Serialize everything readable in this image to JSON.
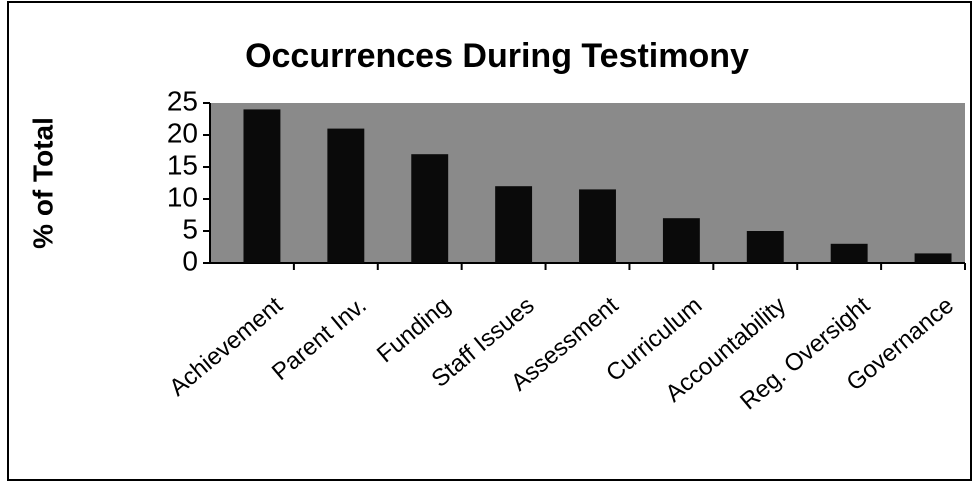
{
  "chart_data": {
    "type": "bar",
    "title": "Occurrences During Testimony",
    "y_label": "% of Total",
    "categories": [
      "Achievement",
      "Parent Inv.",
      "Funding",
      "Staff Issues",
      "Assessment",
      "Curriculum",
      "Accountability",
      "Reg. Oversight",
      "Governance"
    ],
    "values": [
      24,
      21,
      17,
      12,
      11.5,
      7,
      5,
      3,
      1.5
    ],
    "color": "#0a0a0a",
    "plot_background": "#8a8a8a",
    "ylim": [
      0,
      25
    ],
    "yticks": [
      0,
      5,
      10,
      15,
      20,
      25
    ],
    "grid": false
  }
}
